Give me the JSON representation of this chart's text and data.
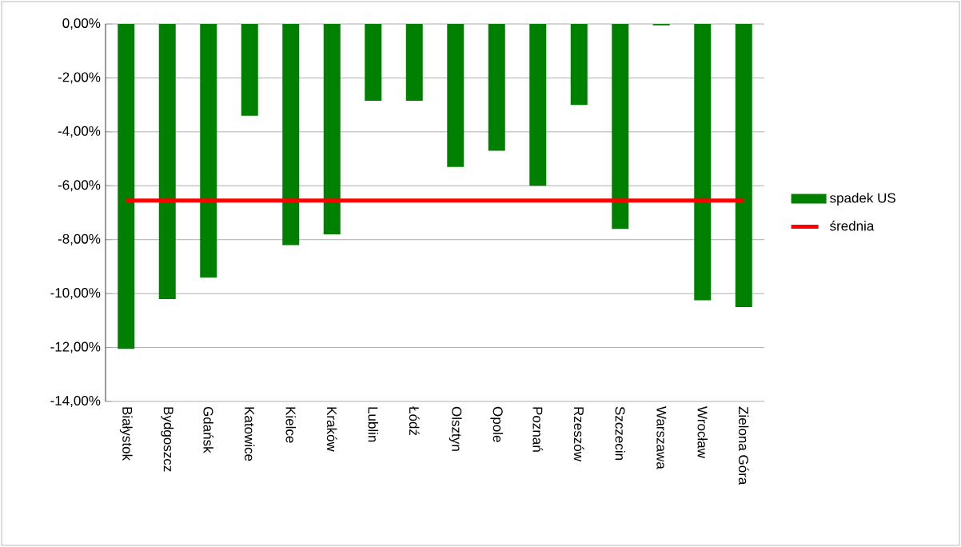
{
  "chart_data": {
    "type": "bar",
    "categories": [
      "Białystok",
      "Bydgoszcz",
      "Gdańsk",
      "Katowice",
      "Kielce",
      "Kraków",
      "Lublin",
      "Łódź",
      "Olsztyn",
      "Opole",
      "Poznań",
      "Rzeszów",
      "Szczecin",
      "Warszawa",
      "Wrocław",
      "Zielona Góra"
    ],
    "series": [
      {
        "name": "spadek US",
        "color": "#008000",
        "values": [
          -12.05,
          -10.2,
          -9.4,
          -3.4,
          -8.2,
          -7.8,
          -2.85,
          -2.85,
          -5.3,
          -4.7,
          -6.0,
          -3.0,
          -7.6,
          -0.05,
          -10.25,
          -10.5
        ]
      },
      {
        "name": "średnia",
        "type": "line",
        "color": "#ff0000",
        "values": [
          -6.55,
          -6.55,
          -6.55,
          -6.55,
          -6.55,
          -6.55,
          -6.55,
          -6.55,
          -6.55,
          -6.55,
          -6.55,
          -6.55,
          -6.55,
          -6.55,
          -6.55,
          -6.55
        ]
      }
    ],
    "ylim": [
      -14,
      0
    ],
    "yticks": [
      {
        "value": 0,
        "label": "0,00%"
      },
      {
        "value": -2,
        "label": "-2,00%"
      },
      {
        "value": -4,
        "label": "-4,00%"
      },
      {
        "value": -6,
        "label": "-6,00%"
      },
      {
        "value": -8,
        "label": "-8,00%"
      },
      {
        "value": -10,
        "label": "-10,00%"
      },
      {
        "value": -12,
        "label": "-12,00%"
      },
      {
        "value": -14,
        "label": "-14,00%"
      }
    ],
    "grid": "y",
    "legend": "right"
  }
}
